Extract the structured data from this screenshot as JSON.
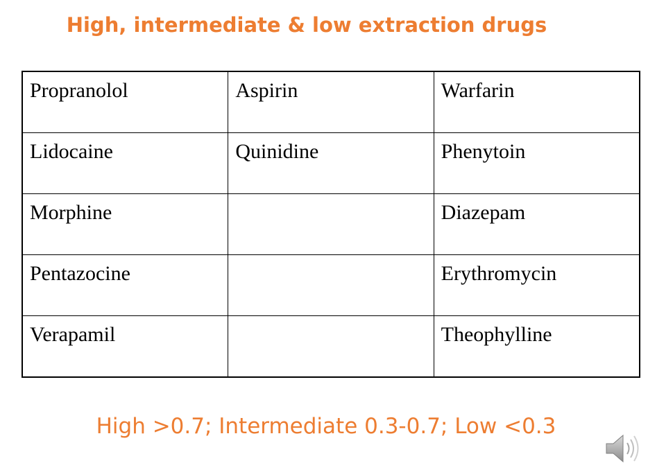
{
  "slide": {
    "title": "High, intermediate & low extraction drugs",
    "footer": "High >0.7; Intermediate 0.3-0.7; Low <0.3"
  },
  "table": {
    "rows": [
      [
        "Propranolol",
        "Aspirin",
        "Warfarin"
      ],
      [
        "Lidocaine",
        "Quinidine",
        "Phenytoin"
      ],
      [
        "Morphine",
        "",
        "Diazepam"
      ],
      [
        "Pentazocine",
        "",
        "Erythromycin"
      ],
      [
        "Verapamil",
        "",
        "Theophylline"
      ]
    ]
  },
  "icons": {
    "audio": "speaker-icon"
  },
  "colors": {
    "accent": "#ed7d31",
    "text": "#000000",
    "speaker": "#a6a6a6"
  }
}
